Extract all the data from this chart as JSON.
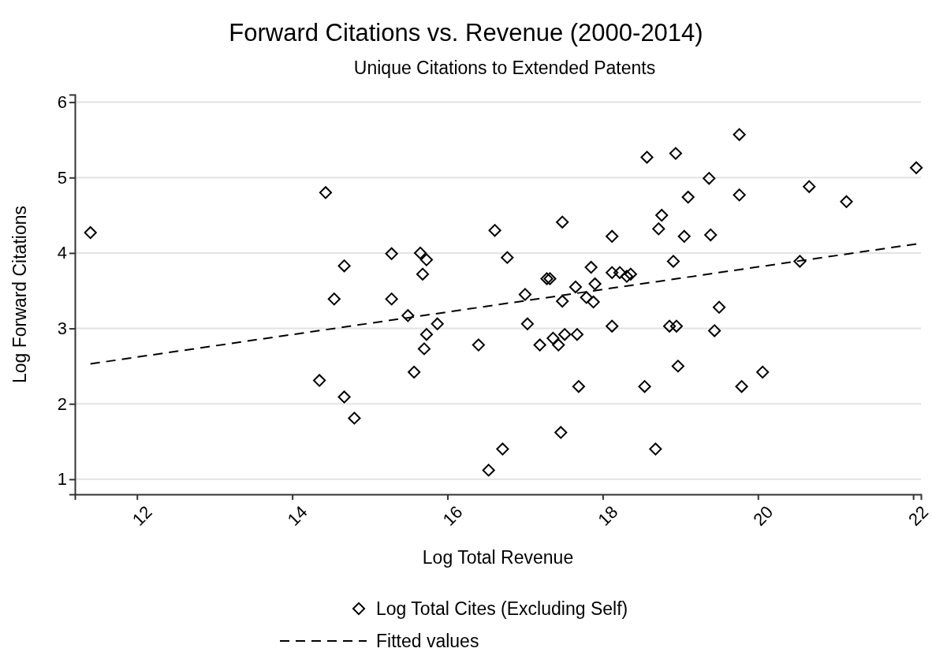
{
  "chart_data": {
    "type": "scatter",
    "title": "Forward Citations vs. Revenue (2000-2014)",
    "subtitle": "Unique Citations to Extended Patents",
    "xlabel": "Log Total Revenue",
    "ylabel": "Log Forward Citations",
    "xlim": [
      11.2,
      22.1
    ],
    "ylim": [
      0.8,
      6.1
    ],
    "xticks": [
      12,
      14,
      16,
      18,
      20,
      22
    ],
    "yticks": [
      1,
      2,
      3,
      4,
      5,
      6
    ],
    "grid": "y",
    "legend": "bottom",
    "series": [
      {
        "name": "Log Total Cites (Excluding Self)",
        "marker": "diamond",
        "color": "#000000",
        "x": [
          11.4,
          14.43,
          14.67,
          14.54,
          14.35,
          14.67,
          14.8,
          18.57,
          18.94,
          19.1,
          18.76,
          18.72,
          19.05,
          17.48,
          16.61,
          18.12,
          15.28,
          15.65,
          15.73,
          15.68,
          16.77,
          15.28,
          15.49,
          15.87,
          15.73,
          15.7,
          15.57,
          16.4,
          16.53,
          16.71,
          17.46,
          17.69,
          18.54,
          18.68,
          18.97,
          18.86,
          18.95,
          18.12,
          17.03,
          17.0,
          17.28,
          17.32,
          17.19,
          17.36,
          17.43,
          17.51,
          17.67,
          17.48,
          17.65,
          17.79,
          17.88,
          17.9,
          17.85,
          18.12,
          18.22,
          18.31,
          18.36,
          18.91,
          19.76,
          19.37,
          19.76,
          19.39,
          20.66,
          21.14,
          22.04,
          20.54,
          19.5,
          19.44,
          20.06,
          19.79
        ],
        "values": [
          4.27,
          4.8,
          3.83,
          3.39,
          2.31,
          2.09,
          1.81,
          5.27,
          5.32,
          4.74,
          4.5,
          4.32,
          4.22,
          4.41,
          4.3,
          4.22,
          3.99,
          4.0,
          3.91,
          3.72,
          3.94,
          3.39,
          3.17,
          3.06,
          2.92,
          2.73,
          2.42,
          2.78,
          1.12,
          1.4,
          1.62,
          2.23,
          2.23,
          1.4,
          2.5,
          3.03,
          3.03,
          3.03,
          3.06,
          3.45,
          3.66,
          3.66,
          2.78,
          2.87,
          2.78,
          2.92,
          2.92,
          3.36,
          3.55,
          3.41,
          3.35,
          3.59,
          3.81,
          3.74,
          3.74,
          3.69,
          3.72,
          3.89,
          5.57,
          4.99,
          4.77,
          4.24,
          4.88,
          4.68,
          5.13,
          3.89,
          3.28,
          2.97,
          2.42,
          2.23
        ]
      },
      {
        "name": "Fitted values",
        "type": "line",
        "line_style": "dashed",
        "color": "#000000",
        "x": [
          11.4,
          22.04
        ],
        "values": [
          2.53,
          4.12
        ]
      }
    ]
  }
}
